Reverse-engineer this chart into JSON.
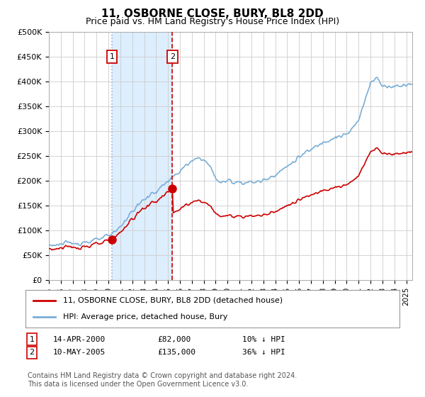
{
  "title": "11, OSBORNE CLOSE, BURY, BL8 2DD",
  "subtitle": "Price paid vs. HM Land Registry's House Price Index (HPI)",
  "ylim": [
    0,
    500000
  ],
  "yticks": [
    0,
    50000,
    100000,
    150000,
    200000,
    250000,
    300000,
    350000,
    400000,
    450000,
    500000
  ],
  "ytick_labels": [
    "£0",
    "£50K",
    "£100K",
    "£150K",
    "£200K",
    "£250K",
    "£300K",
    "£350K",
    "£400K",
    "£450K",
    "£500K"
  ],
  "hpi_color": "#7aaed6",
  "property_color": "#cc0000",
  "sale1_date_x": 2000.29,
  "sale1_price": 82000,
  "sale1_label": "1",
  "sale2_date_x": 2005.37,
  "sale2_price": 135000,
  "sale2_label": "2",
  "legend_property": "11, OSBORNE CLOSE, BURY, BL8 2DD (detached house)",
  "legend_hpi": "HPI: Average price, detached house, Bury",
  "sale1_row": "14-APR-2000",
  "sale1_price_str": "£82,000",
  "sale1_hpi_str": "10% ↓ HPI",
  "sale2_row": "10-MAY-2005",
  "sale2_price_str": "£135,000",
  "sale2_hpi_str": "36% ↓ HPI",
  "footer": "Contains HM Land Registry data © Crown copyright and database right 2024.\nThis data is licensed under the Open Government Licence v3.0.",
  "shade_color": "#ddeeff",
  "vline1_color": "#aaaacc",
  "vline2_color": "#cc0000",
  "background_color": "#ffffff",
  "grid_color": "#cccccc",
  "xlim_left": 1995.0,
  "xlim_right": 2025.5
}
